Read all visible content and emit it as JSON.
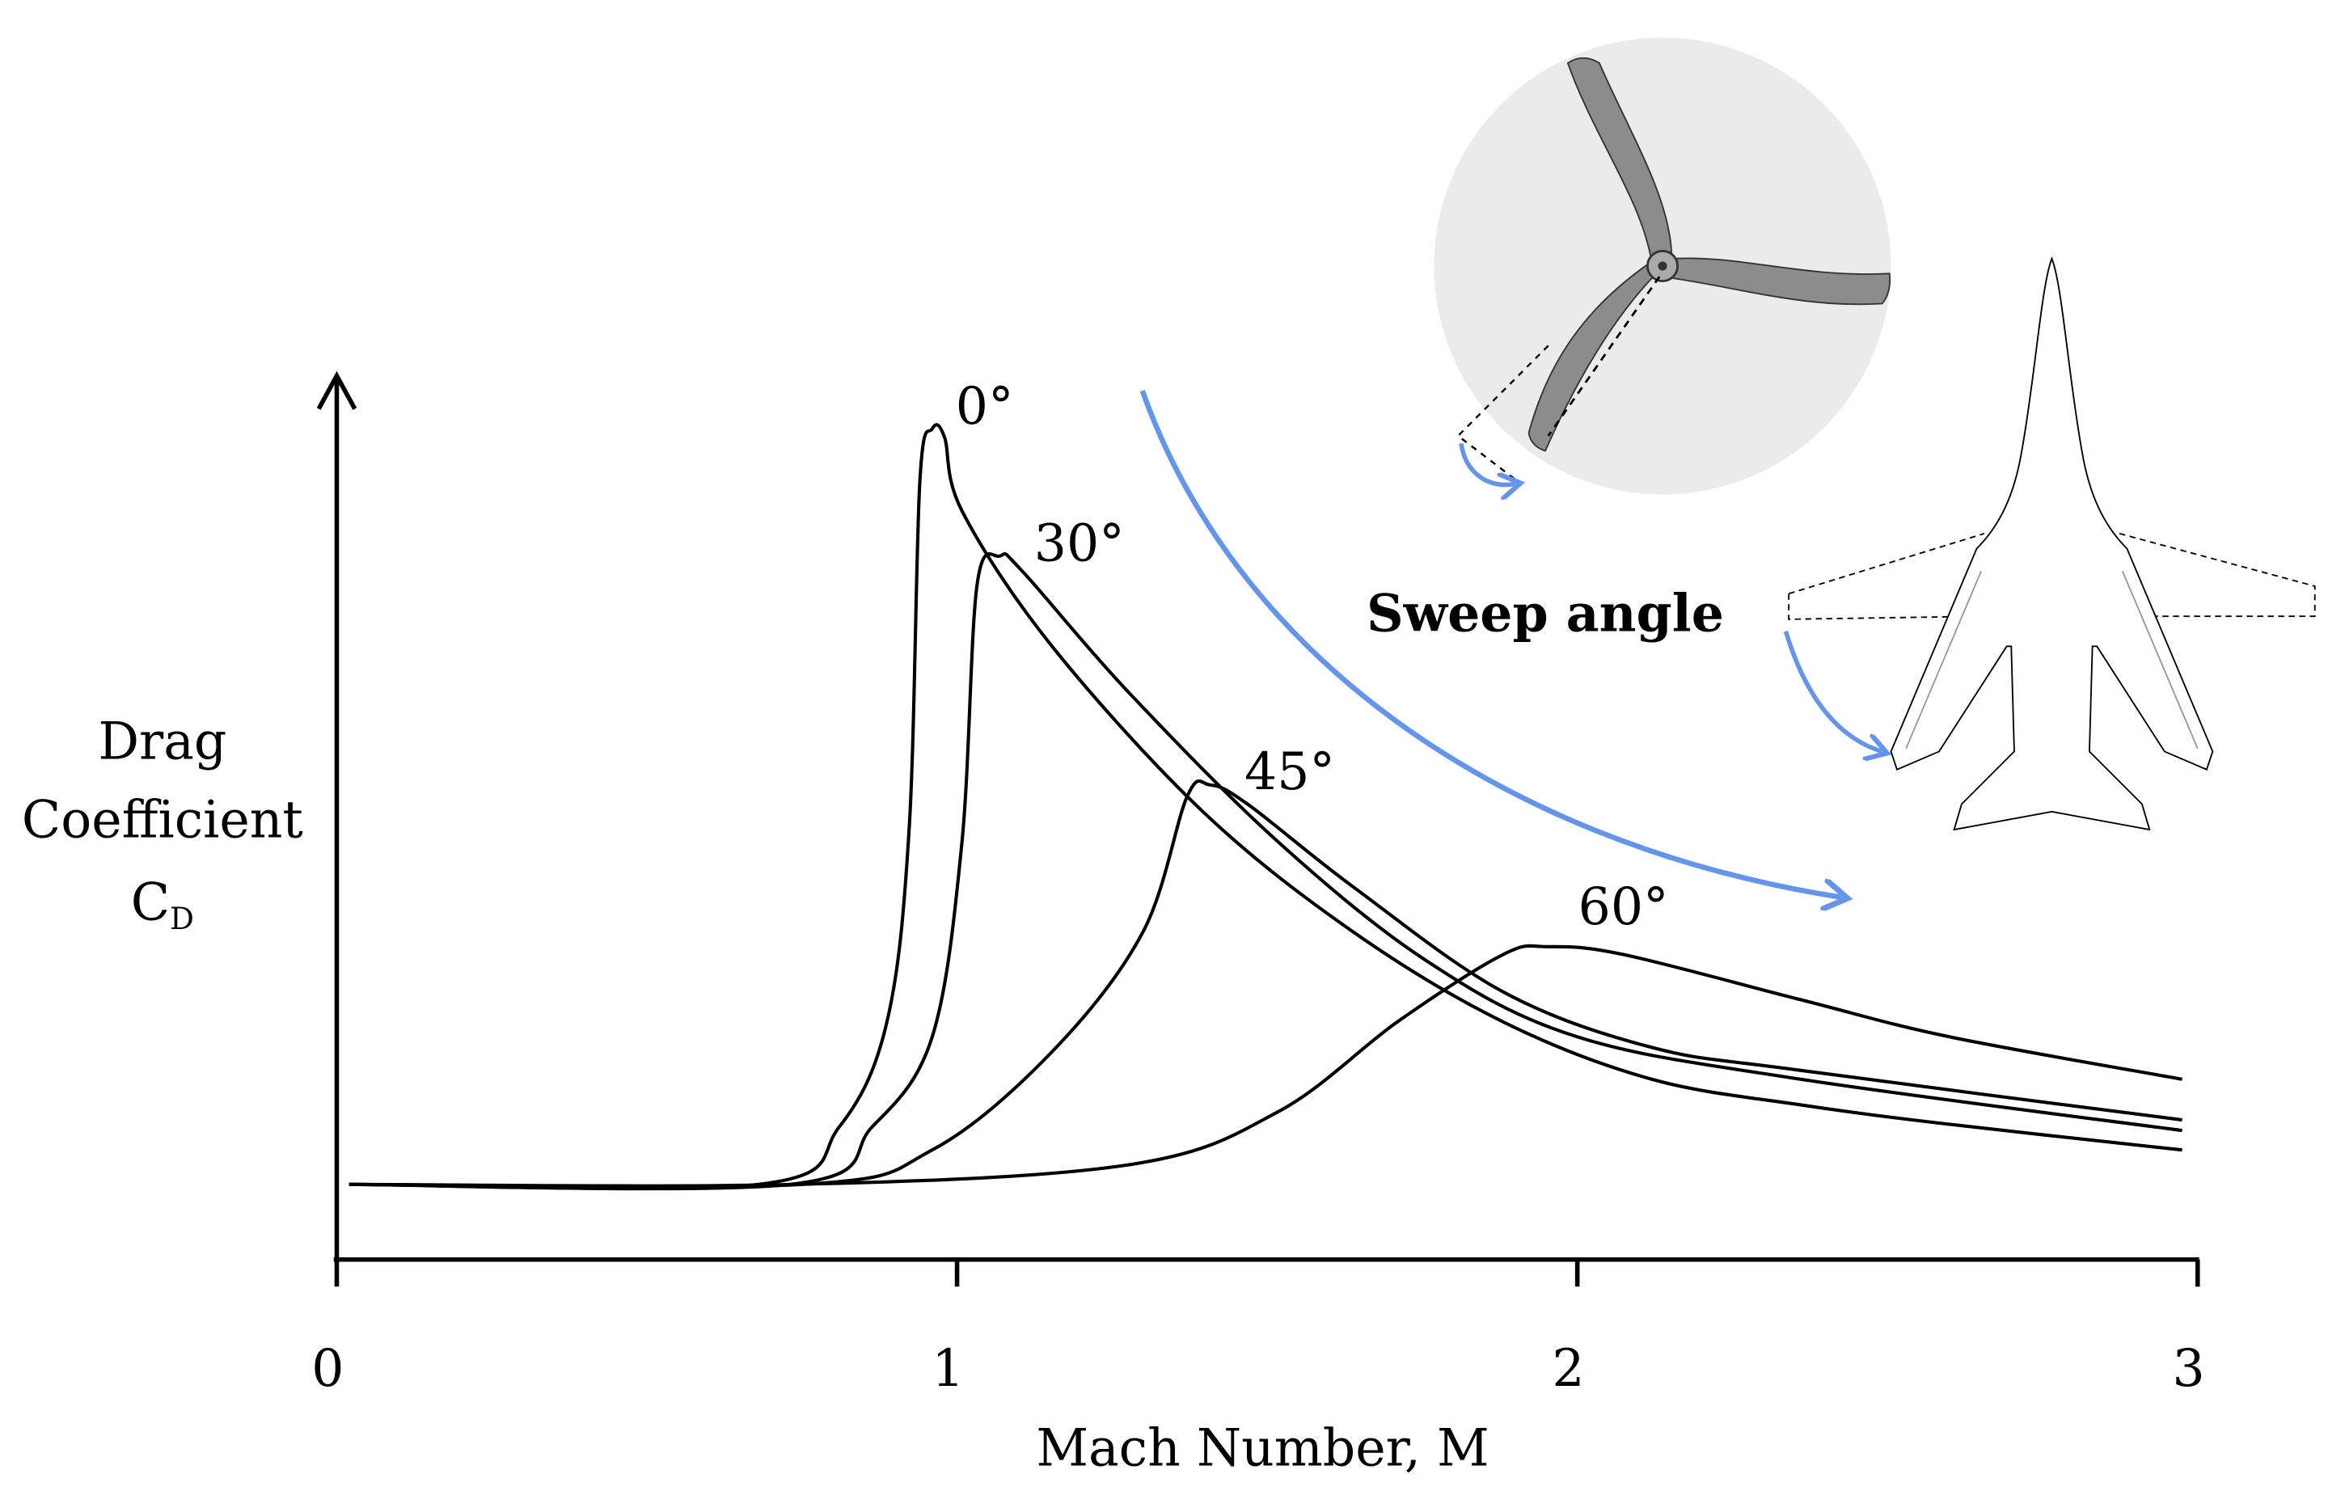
{
  "chart_data": {
    "type": "line",
    "xlabel": "Mach Number, M",
    "ylabel": [
      "Drag",
      "Coefficient"
    ],
    "ysymbol": "C",
    "ysymbol_subscript": "D",
    "annotation": "Sweep angle",
    "xlim": [
      0,
      3
    ],
    "xticks": [
      0,
      1,
      2,
      3
    ],
    "ylim": [
      0,
      1
    ],
    "color": "#000000",
    "series": [
      {
        "name": "0°",
        "x": [
          0.02,
          0.68,
          0.81,
          0.887,
          0.923,
          0.94,
          0.96,
          0.98,
          1.008,
          1.153,
          1.396,
          1.638,
          1.88,
          2.12,
          2.36,
          2.6,
          2.975
        ],
        "values": [
          0.085,
          0.085,
          0.15,
          0.269,
          0.49,
          0.88,
          0.94,
          0.93,
          0.847,
          0.694,
          0.507,
          0.371,
          0.269,
          0.204,
          0.175,
          0.153,
          0.124
        ]
      },
      {
        "name": "30°",
        "x": [
          0.02,
          0.73,
          0.863,
          0.96,
          1.008,
          1.032,
          1.069,
          1.105,
          1.275,
          1.517,
          1.759,
          2.0,
          2.36,
          2.975
        ],
        "values": [
          0.085,
          0.085,
          0.15,
          0.252,
          0.473,
          0.762,
          0.796,
          0.779,
          0.643,
          0.473,
          0.337,
          0.252,
          0.204,
          0.146
        ]
      },
      {
        "name": "45°",
        "x": [
          0.02,
          0.75,
          0.96,
          1.153,
          1.3,
          1.371,
          1.408,
          1.469,
          1.638,
          1.88,
          2.12,
          2.36,
          2.975
        ],
        "values": [
          0.085,
          0.085,
          0.124,
          0.235,
          0.371,
          0.524,
          0.537,
          0.515,
          0.422,
          0.303,
          0.24,
          0.214,
          0.158
        ]
      },
      {
        "name": "60°",
        "x": [
          0.02,
          0.74,
          1.275,
          1.517,
          1.71,
          1.88,
          1.953,
          2.075,
          2.36,
          2.6,
          2.975
        ],
        "values": [
          0.085,
          0.085,
          0.107,
          0.167,
          0.269,
          0.345,
          0.354,
          0.345,
          0.294,
          0.252,
          0.204
        ]
      }
    ]
  }
}
